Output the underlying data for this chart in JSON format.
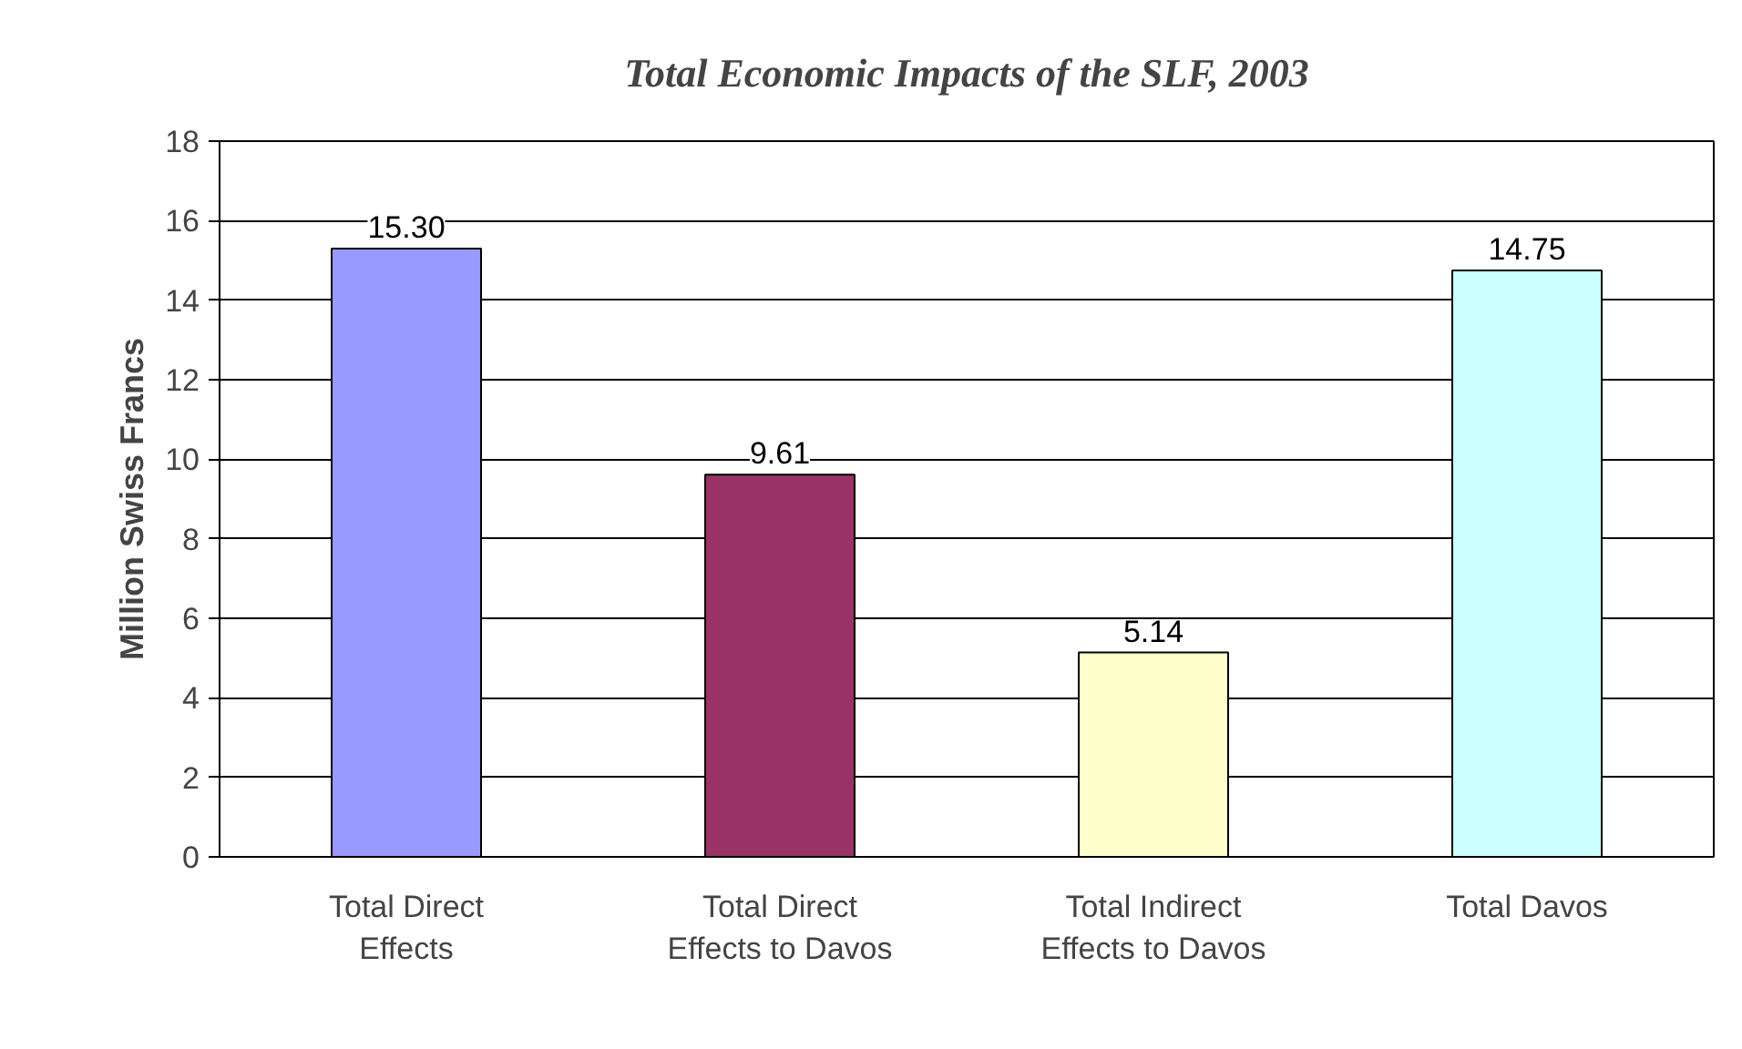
{
  "chart_data": {
    "type": "bar",
    "title": "Total Economic Impacts of the SLF, 2003",
    "ylabel": "Million Swiss Francs",
    "categories": [
      "Total Direct\nEffects",
      "Total Direct\nEffects to Davos",
      "Total Indirect\nEffects to Davos",
      "Total Davos"
    ],
    "values": [
      15.3,
      9.61,
      5.14,
      14.75
    ],
    "colors": [
      "#9999ff",
      "#993366",
      "#ffffcc",
      "#ccffff"
    ],
    "value_labels": [
      "15.30",
      "9.61",
      "5.14",
      "14.75"
    ],
    "ylim": [
      0,
      18
    ],
    "yticks": [
      0,
      2,
      4,
      6,
      8,
      10,
      12,
      14,
      16,
      18
    ],
    "grid": "y"
  }
}
